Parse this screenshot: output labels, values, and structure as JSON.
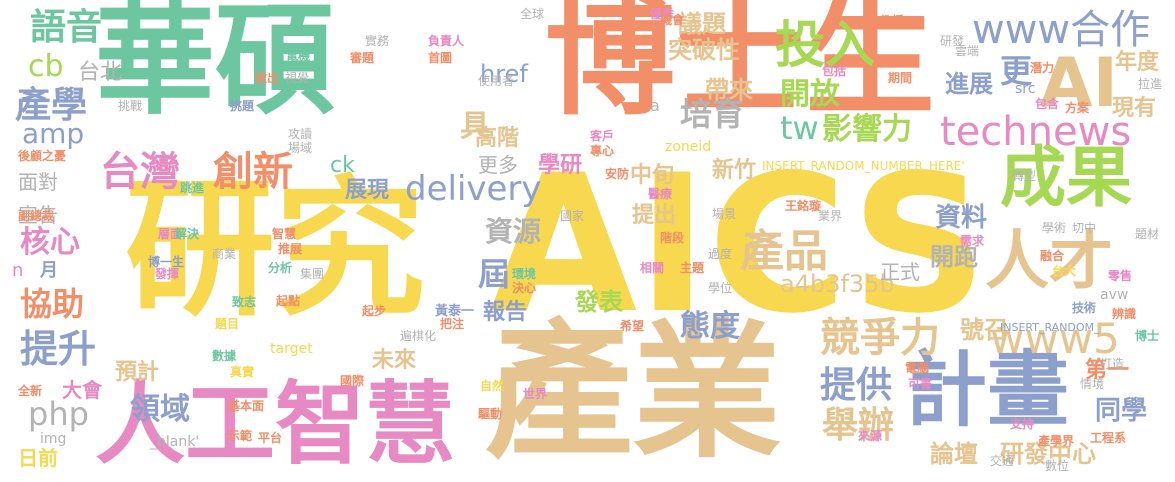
{
  "palette": {
    "orange": "#F28E68",
    "teal": "#6CC7A1",
    "yellow": "#F8D84E",
    "tan": "#E6C48F",
    "blue": "#8DA0CB",
    "pink": "#E78AC3",
    "lime": "#A6D854",
    "grey": "#B3B3B3"
  },
  "words": [
    {
      "text": "華碩",
      "color": "teal"
    },
    {
      "text": "博士生",
      "color": "orange"
    },
    {
      "text": "研究",
      "color": "yellow"
    },
    {
      "text": "AICS",
      "color": "yellow"
    },
    {
      "text": "產業",
      "color": "tan"
    },
    {
      "text": "人工智慧",
      "color": "pink"
    },
    {
      "text": "計畫",
      "color": "blue"
    },
    {
      "text": "成果",
      "color": "lime"
    },
    {
      "text": "AI",
      "color": "tan"
    },
    {
      "text": "人才",
      "color": "tan"
    },
    {
      "text": "台灣",
      "color": "pink"
    },
    {
      "text": "創新",
      "color": "orange"
    },
    {
      "text": "產品",
      "color": "tan"
    },
    {
      "text": "technews",
      "color": "pink"
    },
    {
      "text": "www合作",
      "color": "blue"
    },
    {
      "text": "投入",
      "color": "lime"
    },
    {
      "text": "語音",
      "color": "teal"
    },
    {
      "text": "產學",
      "color": "blue"
    },
    {
      "text": "delivery",
      "color": "blue"
    },
    {
      "text": "競爭力",
      "color": "tan"
    },
    {
      "text": "www5",
      "color": "tan"
    },
    {
      "text": "提供",
      "color": "blue"
    },
    {
      "text": "舉辦",
      "color": "tan"
    },
    {
      "text": "php",
      "color": "grey"
    },
    {
      "text": "領域",
      "color": "blue"
    },
    {
      "text": "協助",
      "color": "orange"
    },
    {
      "text": "提升",
      "color": "blue"
    },
    {
      "text": "核心",
      "color": "pink"
    },
    {
      "text": "資源",
      "color": "grey"
    },
    {
      "text": "培育",
      "color": "grey"
    },
    {
      "text": "開放",
      "color": "lime"
    },
    {
      "text": "tw",
      "color": "teal"
    },
    {
      "text": "影響力",
      "color": "lime"
    },
    {
      "text": "cb",
      "color": "lime"
    },
    {
      "text": "amp",
      "color": "blue"
    },
    {
      "text": "台北",
      "color": "grey"
    },
    {
      "text": "態度",
      "color": "blue"
    },
    {
      "text": "同學",
      "color": "blue"
    },
    {
      "text": "研發中心",
      "color": "tan"
    },
    {
      "text": "論壇",
      "color": "tan"
    },
    {
      "text": "a4b3f35b",
      "color": "tan"
    },
    {
      "text": "資料",
      "color": "blue"
    },
    {
      "text": "開跑",
      "color": "grey"
    },
    {
      "text": "號召",
      "color": "tan"
    },
    {
      "text": "更",
      "color": "blue"
    },
    {
      "text": "進展",
      "color": "blue"
    },
    {
      "text": "年度",
      "color": "tan"
    },
    {
      "text": "現有",
      "color": "tan"
    },
    {
      "text": "議題",
      "color": "tan"
    },
    {
      "text": "突破性",
      "color": "tan"
    },
    {
      "text": "帶來",
      "color": "tan"
    },
    {
      "text": "href",
      "color": "blue"
    },
    {
      "text": "具",
      "color": "tan"
    },
    {
      "text": "高階",
      "color": "tan"
    },
    {
      "text": "更多",
      "color": "grey"
    },
    {
      "text": "學研",
      "color": "pink"
    },
    {
      "text": "中旬",
      "color": "tan"
    },
    {
      "text": "新竹",
      "color": "tan"
    },
    {
      "text": "提出",
      "color": "tan"
    },
    {
      "text": "展現",
      "color": "blue"
    },
    {
      "text": "ck",
      "color": "teal"
    },
    {
      "text": "屆",
      "color": "blue"
    },
    {
      "text": "報告",
      "color": "blue"
    },
    {
      "text": "發表",
      "color": "lime"
    },
    {
      "text": "未來",
      "color": "tan"
    },
    {
      "text": "預計",
      "color": "tan"
    },
    {
      "text": "大會",
      "color": "pink"
    },
    {
      "text": "日前",
      "color": "yellow"
    },
    {
      "text": "面對",
      "color": "grey"
    },
    {
      "text": "宣告",
      "color": "grey"
    },
    {
      "text": "月",
      "color": "blue"
    },
    {
      "text": "n",
      "color": "pink"
    },
    {
      "text": "第一",
      "color": "orange"
    },
    {
      "text": "正式",
      "color": "grey"
    },
    {
      "text": "img",
      "color": "grey"
    },
    {
      "text": "_blank'",
      "color": "grey"
    },
    {
      "text": "INSERT_RANDOM_NUMBER_HERE'",
      "color": "yellow"
    },
    {
      "text": "INSERT_RANDOM_",
      "color": "blue"
    },
    {
      "text": "zoneid",
      "color": "yellow"
    },
    {
      "text": "src",
      "color": "blue"
    },
    {
      "text": "avw",
      "color": "grey"
    },
    {
      "text": "target",
      "color": "yellow"
    },
    {
      "text": "王銘璇",
      "color": "orange"
    },
    {
      "text": "黃泰一",
      "color": "blue"
    },
    {
      "text": "世界",
      "color": "pink"
    },
    {
      "text": "全球",
      "color": "grey"
    },
    {
      "text": "優秀",
      "color": "pink"
    },
    {
      "text": "教授",
      "color": "orange"
    },
    {
      "text": "研發",
      "color": "grey"
    },
    {
      "text": "雲端",
      "color": "grey"
    },
    {
      "text": "執行",
      "color": "teal"
    },
    {
      "text": "電機",
      "color": "teal"
    },
    {
      "text": "負責人",
      "color": "pink"
    },
    {
      "text": "首圖",
      "color": "orange"
    },
    {
      "text": "使用者",
      "color": "grey"
    },
    {
      "text": "挑戰",
      "color": "grey"
    },
    {
      "text": "挑題",
      "color": "blue"
    },
    {
      "text": "後顧之憂",
      "color": "orange"
    },
    {
      "text": "攻讀",
      "color": "grey"
    },
    {
      "text": "場域",
      "color": "grey"
    },
    {
      "text": "專心",
      "color": "orange"
    },
    {
      "text": "客戶",
      "color": "pink"
    },
    {
      "text": "安防",
      "color": "orange"
    },
    {
      "text": "醫療",
      "color": "pink"
    },
    {
      "text": "轉型",
      "color": "grey"
    },
    {
      "text": "副總裁",
      "color": "orange"
    },
    {
      "text": "跳進",
      "color": "teal"
    },
    {
      "text": "國家",
      "color": "grey"
    },
    {
      "text": "場景",
      "color": "grey"
    },
    {
      "text": "業界",
      "color": "grey"
    },
    {
      "text": "學術",
      "color": "grey"
    },
    {
      "text": "切中",
      "color": "grey"
    },
    {
      "text": "題材",
      "color": "grey"
    },
    {
      "text": "需求",
      "color": "pink"
    },
    {
      "text": "融合",
      "color": "orange"
    },
    {
      "text": "台大",
      "color": "yellow"
    },
    {
      "text": "零售",
      "color": "pink"
    },
    {
      "text": "博士",
      "color": "teal"
    },
    {
      "text": "技術",
      "color": "blue"
    },
    {
      "text": "辨識",
      "color": "orange"
    },
    {
      "text": "電腦",
      "color": "orange"
    },
    {
      "text": "可書",
      "color": "pink"
    },
    {
      "text": "打造",
      "color": "grey"
    },
    {
      "text": "情境",
      "color": "grey"
    },
    {
      "text": "支持",
      "color": "pink"
    },
    {
      "text": "產學界",
      "color": "orange"
    },
    {
      "text": "工程系",
      "color": "orange"
    },
    {
      "text": "數位",
      "color": "grey"
    },
    {
      "text": "交通",
      "color": "grey"
    },
    {
      "text": "來源",
      "color": "pink"
    },
    {
      "text": "自然",
      "color": "yellow"
    },
    {
      "text": "驅動",
      "color": "orange"
    },
    {
      "text": "國際",
      "color": "orange"
    },
    {
      "text": "全新",
      "color": "orange"
    },
    {
      "text": "基本面",
      "color": "orange"
    },
    {
      "text": "示範",
      "color": "orange"
    },
    {
      "text": "平台",
      "color": "orange"
    },
    {
      "text": "數據",
      "color": "teal"
    },
    {
      "text": "真實",
      "color": "yellow"
    },
    {
      "text": "題目",
      "color": "yellow"
    },
    {
      "text": "致志",
      "color": "teal"
    },
    {
      "text": "起點",
      "color": "orange"
    },
    {
      "text": "起步",
      "color": "orange"
    },
    {
      "text": "把注",
      "color": "orange"
    },
    {
      "text": "遍棋化",
      "color": "grey"
    },
    {
      "text": "希望",
      "color": "orange"
    },
    {
      "text": "集團",
      "color": "grey"
    },
    {
      "text": "分析",
      "color": "teal"
    },
    {
      "text": "商業",
      "color": "grey"
    },
    {
      "text": "智慧",
      "color": "orange"
    },
    {
      "text": "推展",
      "color": "orange"
    },
    {
      "text": "博一生",
      "color": "blue"
    },
    {
      "text": "發揮",
      "color": "pink"
    },
    {
      "text": "層面",
      "color": "pink"
    },
    {
      "text": "解決",
      "color": "teal"
    },
    {
      "text": "環境",
      "color": "teal"
    },
    {
      "text": "決心",
      "color": "orange"
    },
    {
      "text": "階段",
      "color": "orange"
    },
    {
      "text": "相關",
      "color": "pink"
    },
    {
      "text": "主題",
      "color": "orange"
    },
    {
      "text": "過度",
      "color": "grey"
    },
    {
      "text": "學位",
      "color": "grey"
    },
    {
      "text": "機會",
      "color": "orange"
    },
    {
      "text": "實務",
      "color": "grey"
    },
    {
      "text": "審題",
      "color": "orange"
    },
    {
      "text": "做出",
      "color": "orange"
    },
    {
      "text": "視覺",
      "color": "grey"
    },
    {
      "text": "期間",
      "color": "orange"
    },
    {
      "text": "包括",
      "color": "pink"
    },
    {
      "text": "潛力",
      "color": "orange"
    },
    {
      "text": "包含",
      "color": "pink"
    },
    {
      "text": "方案",
      "color": "orange"
    },
    {
      "text": "拉進",
      "color": "grey"
    },
    {
      "text": "a",
      "color": "grey"
    }
  ]
}
